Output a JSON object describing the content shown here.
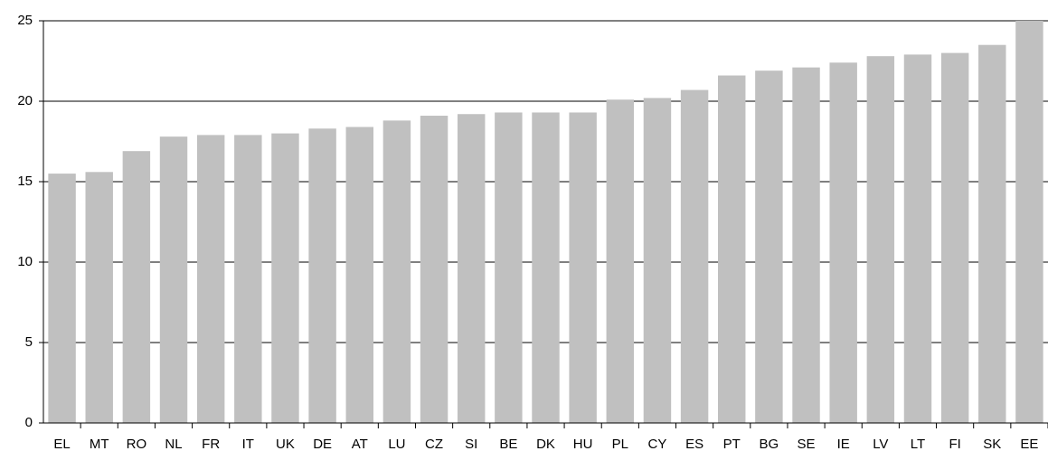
{
  "chart_data": {
    "type": "bar",
    "categories": [
      "EL",
      "MT",
      "RO",
      "NL",
      "FR",
      "IT",
      "UK",
      "DE",
      "AT",
      "LU",
      "CZ",
      "SI",
      "BE",
      "DK",
      "HU",
      "PL",
      "CY",
      "ES",
      "PT",
      "BG",
      "SE",
      "IE",
      "LV",
      "LT",
      "FI",
      "SK",
      "EE"
    ],
    "values": [
      15.5,
      15.6,
      16.9,
      17.8,
      17.9,
      17.9,
      18.0,
      18.3,
      18.4,
      18.8,
      19.1,
      19.2,
      19.3,
      19.3,
      19.3,
      20.1,
      20.2,
      20.7,
      21.6,
      21.9,
      22.1,
      22.4,
      22.8,
      22.9,
      23.0,
      23.5,
      25
    ],
    "color": "#c0c0c0",
    "ylim": [
      0,
      25
    ],
    "yticks": [
      0,
      5,
      10,
      15,
      20,
      25
    ],
    "grid": true
  }
}
